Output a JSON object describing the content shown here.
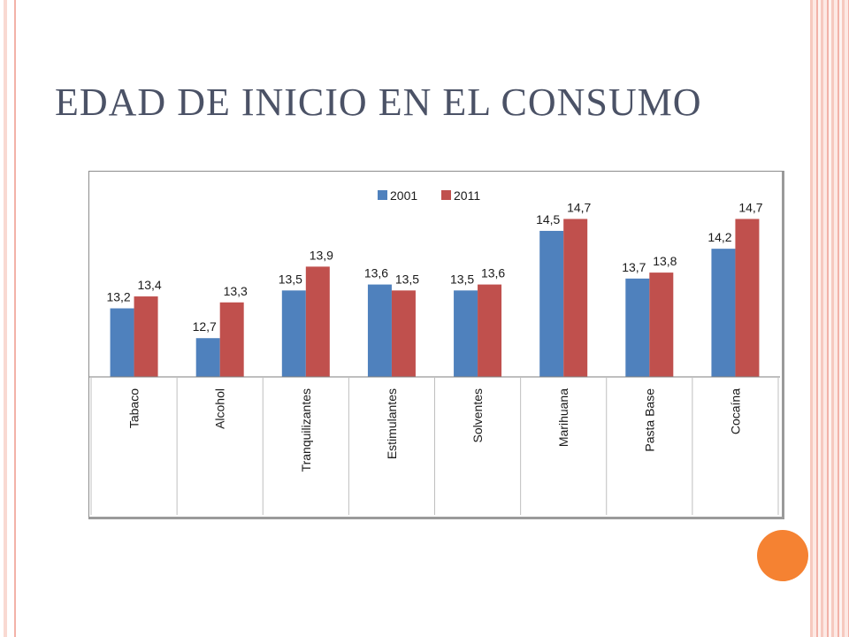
{
  "slide": {
    "title": "EDAD DE INICIO EN EL CONSUMO"
  },
  "colors": {
    "series_2001": "#4f81bd",
    "series_2011": "#c0504d",
    "frame_accent": "#f2b2a8",
    "dot": "#f58232",
    "title": "#4b5266"
  },
  "chart_data": {
    "type": "bar",
    "title": "",
    "xlabel": "",
    "ylabel": "",
    "categories": [
      "Tabaco",
      "Alcohol",
      "Tranquilizantes",
      "Estimulantes",
      "Solventes",
      "Marihuana",
      "Pasta Base",
      "Cocaína"
    ],
    "series": [
      {
        "name": "2001",
        "values": [
          13.2,
          12.7,
          13.5,
          13.6,
          13.5,
          14.5,
          13.7,
          14.2
        ],
        "labels": [
          "13,2",
          "12,7",
          "13,5",
          "13,6",
          "13,5",
          "14,5",
          "13,7",
          "14,2"
        ]
      },
      {
        "name": "2011",
        "values": [
          13.4,
          13.3,
          13.9,
          13.5,
          13.6,
          14.7,
          13.8,
          14.7
        ],
        "labels": [
          "13,4",
          "13,3",
          "13,9",
          "13,5",
          "13,6",
          "14,7",
          "13,8",
          "14,7"
        ]
      }
    ],
    "ylim": [
      12.05,
      14.9
    ],
    "grid": false,
    "legend": "top-center",
    "category_label_orientation": "vertical"
  }
}
